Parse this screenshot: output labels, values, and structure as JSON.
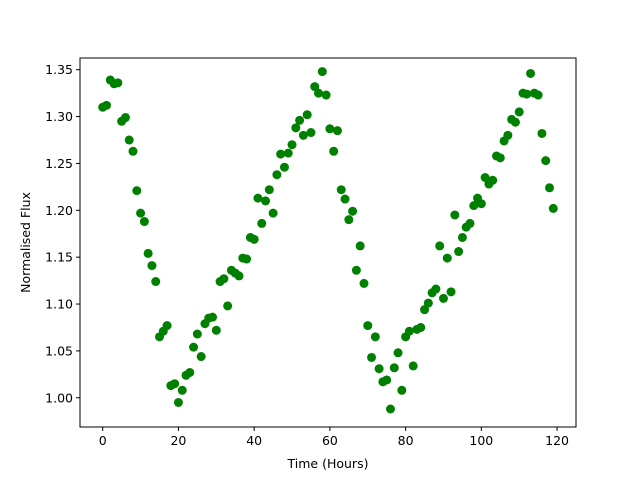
{
  "chart_data": {
    "type": "scatter",
    "title": "",
    "xlabel": "Time (Hours)",
    "ylabel": "Normalised Flux",
    "xlim": [
      -6,
      125
    ],
    "ylim": [
      0.9688,
      1.3625
    ],
    "xticks": [
      0,
      20,
      40,
      60,
      80,
      100,
      120
    ],
    "yticks": [
      1.0,
      1.05,
      1.1,
      1.15,
      1.2,
      1.25,
      1.3,
      1.35
    ],
    "xtick_labels": [
      "0",
      "20",
      "40",
      "60",
      "80",
      "100",
      "120"
    ],
    "ytick_labels": [
      "1.00",
      "1.05",
      "1.10",
      "1.15",
      "1.20",
      "1.25",
      "1.30",
      "1.35"
    ],
    "grid": false,
    "marker_color": "#008000",
    "series": [
      {
        "x": [
          0,
          1,
          2,
          3,
          4,
          5,
          6,
          7,
          8,
          9,
          10,
          11,
          12,
          13,
          14,
          15,
          16,
          17,
          18,
          19,
          20,
          21,
          22,
          23,
          24,
          25,
          26,
          27,
          28,
          29,
          30,
          31,
          32,
          33,
          34,
          35,
          36,
          37,
          38,
          39,
          40,
          41,
          42,
          43,
          44,
          45,
          46,
          47,
          48,
          49,
          50,
          51,
          52,
          53,
          54,
          55,
          56,
          57,
          58,
          59,
          60,
          61,
          62,
          63,
          64,
          65,
          66,
          67,
          68,
          69,
          70,
          71,
          72,
          73,
          74,
          75,
          76,
          77,
          78,
          79,
          80,
          81,
          82,
          83,
          84,
          85,
          86,
          87,
          88,
          89,
          90,
          91,
          92,
          93,
          94,
          95,
          96,
          97,
          98,
          99,
          100,
          101,
          102,
          103,
          104,
          105,
          106,
          107,
          108,
          109,
          110,
          111,
          112,
          113,
          114,
          115,
          116,
          117,
          118,
          119
        ],
        "y": [
          1.31,
          1.312,
          1.339,
          1.335,
          1.336,
          1.295,
          1.299,
          1.275,
          1.263,
          1.221,
          1.197,
          1.188,
          1.154,
          1.141,
          1.124,
          1.065,
          1.071,
          1.077,
          1.013,
          1.015,
          0.995,
          1.008,
          1.024,
          1.027,
          1.054,
          1.068,
          1.044,
          1.079,
          1.085,
          1.086,
          1.072,
          1.124,
          1.127,
          1.098,
          1.136,
          1.133,
          1.13,
          1.149,
          1.148,
          1.171,
          1.169,
          1.213,
          1.186,
          1.21,
          1.222,
          1.197,
          1.238,
          1.26,
          1.246,
          1.261,
          1.27,
          1.288,
          1.296,
          1.28,
          1.302,
          1.283,
          1.332,
          1.325,
          1.348,
          1.323,
          1.287,
          1.263,
          1.285,
          1.222,
          1.212,
          1.19,
          1.199,
          1.136,
          1.162,
          1.122,
          1.077,
          1.043,
          1.065,
          1.031,
          1.017,
          1.019,
          0.988,
          1.032,
          1.048,
          1.008,
          1.065,
          1.071,
          1.034,
          1.073,
          1.075,
          1.094,
          1.101,
          1.112,
          1.116,
          1.162,
          1.106,
          1.149,
          1.113,
          1.195,
          1.156,
          1.171,
          1.182,
          1.186,
          1.205,
          1.213,
          1.207,
          1.235,
          1.228,
          1.232,
          1.258,
          1.256,
          1.274,
          1.28,
          1.297,
          1.294,
          1.305,
          1.325,
          1.324,
          1.346,
          1.325,
          1.323,
          1.282,
          1.253,
          1.224,
          1.202
        ]
      }
    ]
  }
}
